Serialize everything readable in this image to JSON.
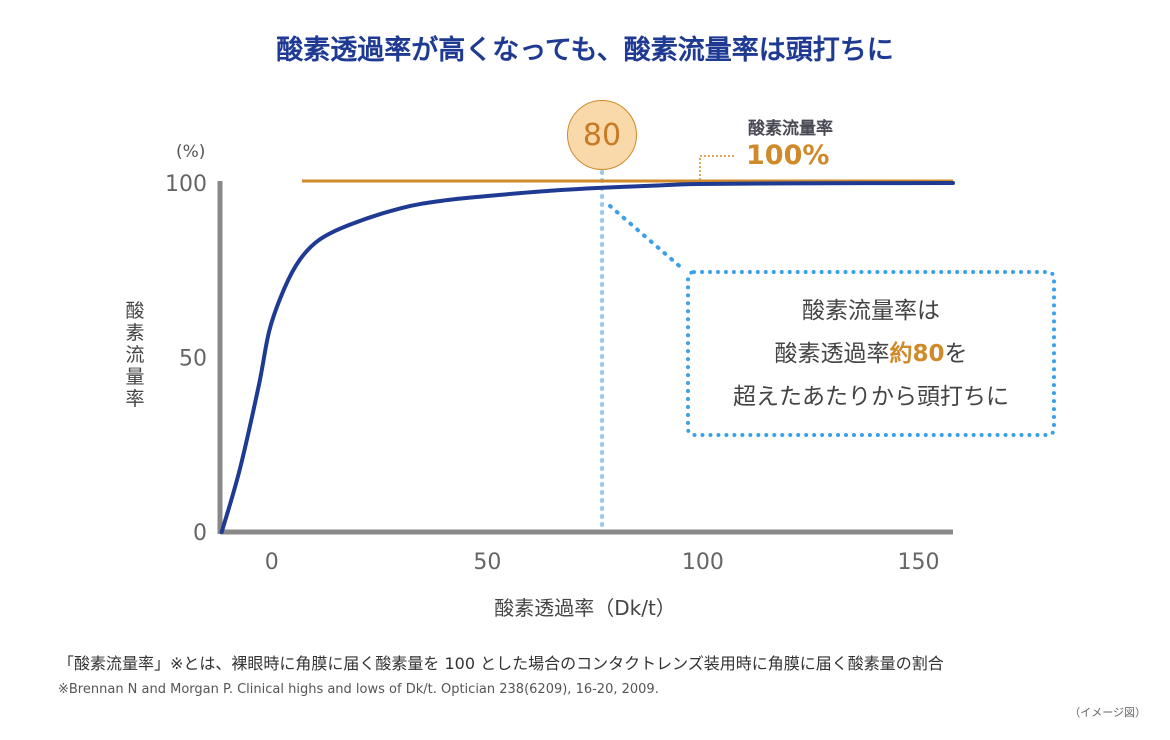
{
  "chart_data": {
    "type": "line",
    "title": "酸素透過率が高くなっても、酸素流量率は頭打ちに",
    "xlabel": "酸素透過率（Dk/t）",
    "ylabel": "酸素流量率",
    "yunit": "(%)",
    "xlim": [
      -12,
      158
    ],
    "ylim": [
      0,
      100
    ],
    "xticks": [
      "0",
      "50",
      "100",
      "150"
    ],
    "yticks": [
      "0",
      "50",
      "100"
    ],
    "grid": false,
    "series": [
      {
        "color": "#1f3a93",
        "x": [
          -11.6,
          -7.4,
          -3,
          -0.5,
          3,
          6.5,
          11,
          18,
          30,
          40,
          53,
          65,
          76,
          88,
          99,
          120,
          158
        ],
        "y": [
          0,
          18,
          42,
          58,
          70,
          78,
          83.7,
          88,
          92.8,
          95,
          96.6,
          97.8,
          98.6,
          99.2,
          99.7,
          99.9,
          100
        ]
      }
    ],
    "reference_line": {
      "y": 100,
      "x_start": 7,
      "color": "#d08a2a",
      "label": "酸素流量率",
      "value_label": "100%"
    },
    "marker": {
      "x": 80,
      "label": "80",
      "color": "#9ec8ee"
    },
    "annotation": {
      "line1": "酸素流量率は",
      "line2_prefix": "酸素透過率",
      "line2_highlight": "約80",
      "line2_suffix": "を",
      "line3": "超えたあたりから頭打ちに"
    }
  },
  "footnotes": {
    "definition": "「酸素流量率」※とは、裸眼時に角膜に届く酸素量を 100 とした場合のコンタクトレンズ装用時に角膜に届く酸素量の割合",
    "reference": "※Brennan N and Morgan P. Clinical highs and lows of Dk/t. Optician 238(6209), 16-20, 2009.",
    "image_note": "（イメージ図）"
  }
}
